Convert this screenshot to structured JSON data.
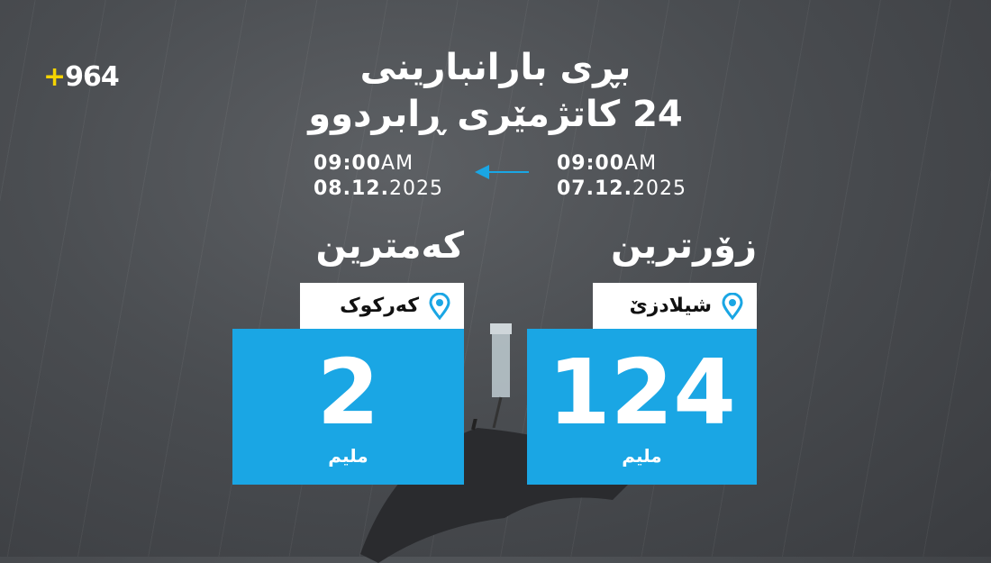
{
  "logo": "+964",
  "title": {
    "line1": "بڕی بارانبارینی",
    "line2": "24 کاتژمێری ڕابردوو"
  },
  "period": {
    "start": {
      "time": "09:00",
      "ampm": "AM",
      "date": "07.12.",
      "year": "2025"
    },
    "end": {
      "time": "09:00",
      "ampm": "AM",
      "date": "08.12.",
      "year": "2025"
    }
  },
  "highest": {
    "heading": "زۆرترین",
    "location": "شیلادزێ",
    "value": "124",
    "unit": "ملیم"
  },
  "lowest": {
    "heading": "کەمترین",
    "location": "کەرکوک",
    "value": "2",
    "unit": "ملیم"
  },
  "colors": {
    "accent": "#1aa6e4",
    "logo_plus": "#f5d400"
  }
}
